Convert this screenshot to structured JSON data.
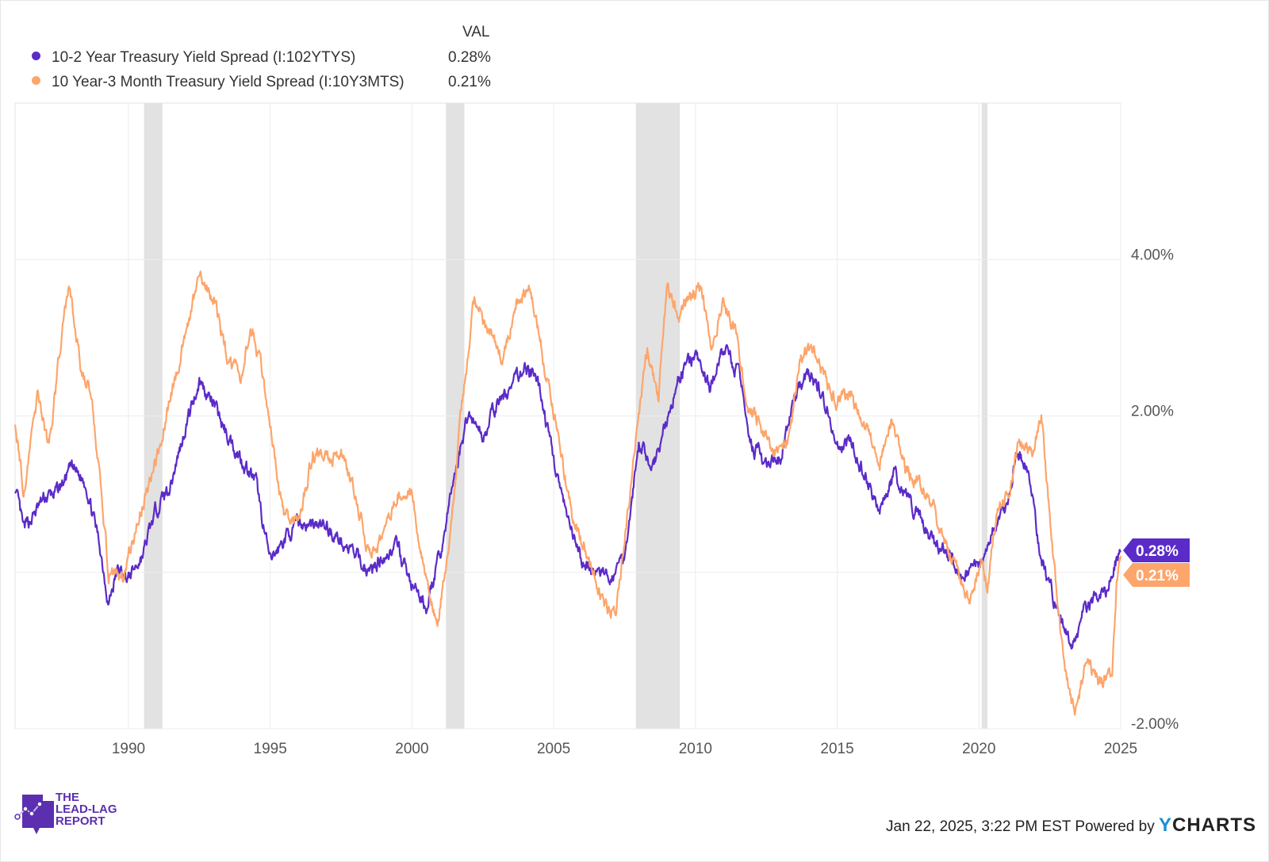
{
  "legend": {
    "header": "VAL",
    "series": [
      {
        "label": "10-2 Year Treasury Yield Spread (I:102YTYS)",
        "value": "0.28%",
        "color": "#5b2bc8"
      },
      {
        "label": "10 Year-3 Month Treasury Yield Spread (I:10Y3MTS)",
        "value": "0.21%",
        "color": "#fda56b"
      }
    ]
  },
  "footer": {
    "timestamp": "Jan 22, 2025, 3:22 PM EST",
    "powered": "Powered by",
    "brand_y": "Y",
    "brand_rest": "CHARTS"
  },
  "logo": {
    "line1": "THE",
    "line2": "LEAD-LAG",
    "line3": "REPORT"
  },
  "chart_data": {
    "type": "line",
    "title": "",
    "xlabel": "",
    "ylabel": "",
    "xlim": [
      1986.0,
      2025.0
    ],
    "ylim": [
      -2.0,
      6.0
    ],
    "x_ticks": [
      1990,
      1995,
      2000,
      2005,
      2010,
      2015,
      2020,
      2025
    ],
    "x_tick_labels": [
      "1990",
      "1995",
      "2000",
      "2005",
      "2010",
      "2015",
      "2020",
      "2025"
    ],
    "y_ticks": [
      -2,
      0,
      2,
      4
    ],
    "y_tick_labels": [
      "-2.00%",
      "",
      "2.00%",
      "4.00%"
    ],
    "grid": true,
    "recessions": [
      [
        1990.55,
        1991.2
      ],
      [
        2001.2,
        2001.85
      ],
      [
        2007.9,
        2009.45
      ],
      [
        2020.1,
        2020.3
      ]
    ],
    "end_labels": [
      "0.28%",
      "0.21%"
    ],
    "series": [
      {
        "name": "10-2 Year Treasury Yield Spread (I:102YTYS)",
        "color": "#5b2bc8",
        "points": [
          [
            1986.0,
            1.08
          ],
          [
            1986.3,
            0.53
          ],
          [
            1987.0,
            0.93
          ],
          [
            1987.5,
            1.03
          ],
          [
            1988.0,
            1.34
          ],
          [
            1988.5,
            1.14
          ],
          [
            1989.0,
            0.32
          ],
          [
            1989.3,
            -0.39
          ],
          [
            1989.6,
            0.02
          ],
          [
            1990.0,
            -0.08
          ],
          [
            1990.5,
            0.22
          ],
          [
            1991.0,
            0.83
          ],
          [
            1991.5,
            1.14
          ],
          [
            1992.0,
            1.85
          ],
          [
            1992.5,
            2.45
          ],
          [
            1993.0,
            2.15
          ],
          [
            1993.5,
            1.74
          ],
          [
            1994.0,
            1.44
          ],
          [
            1994.5,
            1.14
          ],
          [
            1995.0,
            0.12
          ],
          [
            1995.5,
            0.43
          ],
          [
            1996.0,
            0.63
          ],
          [
            1997.0,
            0.58
          ],
          [
            1998.0,
            0.22
          ],
          [
            1998.5,
            0.0
          ],
          [
            1999.0,
            0.22
          ],
          [
            1999.5,
            0.32
          ],
          [
            2000.0,
            -0.18
          ],
          [
            2000.5,
            -0.44
          ],
          [
            2001.0,
            0.22
          ],
          [
            2001.5,
            1.24
          ],
          [
            2002.0,
            2.05
          ],
          [
            2002.5,
            1.74
          ],
          [
            2003.0,
            2.15
          ],
          [
            2003.5,
            2.35
          ],
          [
            2004.0,
            2.66
          ],
          [
            2004.5,
            2.35
          ],
          [
            2005.0,
            1.44
          ],
          [
            2005.5,
            0.63
          ],
          [
            2006.0,
            0.12
          ],
          [
            2006.5,
            0.0
          ],
          [
            2007.0,
            -0.08
          ],
          [
            2007.5,
            0.22
          ],
          [
            2008.0,
            1.64
          ],
          [
            2008.5,
            1.34
          ],
          [
            2009.0,
            1.95
          ],
          [
            2009.5,
            2.56
          ],
          [
            2010.0,
            2.76
          ],
          [
            2010.5,
            2.35
          ],
          [
            2011.0,
            2.86
          ],
          [
            2011.5,
            2.56
          ],
          [
            2012.0,
            1.64
          ],
          [
            2012.5,
            1.34
          ],
          [
            2013.0,
            1.44
          ],
          [
            2013.5,
            2.25
          ],
          [
            2014.0,
            2.56
          ],
          [
            2014.5,
            2.25
          ],
          [
            2015.0,
            1.64
          ],
          [
            2015.5,
            1.64
          ],
          [
            2016.0,
            1.24
          ],
          [
            2016.5,
            0.83
          ],
          [
            2017.0,
            1.24
          ],
          [
            2017.5,
            0.93
          ],
          [
            2018.0,
            0.63
          ],
          [
            2018.5,
            0.32
          ],
          [
            2019.0,
            0.22
          ],
          [
            2019.5,
            -0.08
          ],
          [
            2020.0,
            0.12
          ],
          [
            2020.5,
            0.53
          ],
          [
            2021.0,
            0.83
          ],
          [
            2021.3,
            1.54
          ],
          [
            2021.8,
            1.24
          ],
          [
            2022.2,
            0.12
          ],
          [
            2022.5,
            -0.18
          ],
          [
            2023.0,
            -0.69
          ],
          [
            2023.3,
            -1.0
          ],
          [
            2023.7,
            -0.49
          ],
          [
            2024.0,
            -0.39
          ],
          [
            2024.5,
            -0.28
          ],
          [
            2024.8,
            0.12
          ],
          [
            2025.0,
            0.28
          ]
        ]
      },
      {
        "name": "10 Year-3 Month Treasury Yield Spread (I:10Y3MTS)",
        "color": "#fda56b",
        "points": [
          [
            1986.0,
            1.95
          ],
          [
            1986.3,
            1.03
          ],
          [
            1986.8,
            2.25
          ],
          [
            1987.2,
            1.64
          ],
          [
            1987.6,
            2.86
          ],
          [
            1987.9,
            3.67
          ],
          [
            1988.3,
            2.66
          ],
          [
            1988.7,
            2.25
          ],
          [
            1989.0,
            1.14
          ],
          [
            1989.3,
            0.0
          ],
          [
            1989.8,
            -0.08
          ],
          [
            1990.2,
            0.43
          ],
          [
            1990.6,
            1.03
          ],
          [
            1991.0,
            1.44
          ],
          [
            1991.5,
            2.25
          ],
          [
            1992.0,
            3.06
          ],
          [
            1992.5,
            3.77
          ],
          [
            1993.0,
            3.47
          ],
          [
            1993.5,
            2.76
          ],
          [
            1994.0,
            2.45
          ],
          [
            1994.3,
            3.16
          ],
          [
            1994.7,
            2.56
          ],
          [
            1995.0,
            1.85
          ],
          [
            1995.5,
            0.73
          ],
          [
            1996.0,
            0.63
          ],
          [
            1996.5,
            1.54
          ],
          [
            1997.0,
            1.44
          ],
          [
            1997.5,
            1.54
          ],
          [
            1998.0,
            1.03
          ],
          [
            1998.5,
            0.22
          ],
          [
            1999.0,
            0.43
          ],
          [
            1999.5,
            1.03
          ],
          [
            2000.0,
            1.03
          ],
          [
            2000.5,
            -0.08
          ],
          [
            2000.9,
            -0.69
          ],
          [
            2001.3,
            0.43
          ],
          [
            2001.8,
            2.25
          ],
          [
            2002.2,
            3.47
          ],
          [
            2002.7,
            3.06
          ],
          [
            2003.2,
            2.76
          ],
          [
            2003.7,
            3.47
          ],
          [
            2004.2,
            3.67
          ],
          [
            2004.7,
            2.56
          ],
          [
            2005.2,
            1.64
          ],
          [
            2005.7,
            0.63
          ],
          [
            2006.2,
            0.22
          ],
          [
            2006.7,
            -0.39
          ],
          [
            2007.2,
            -0.49
          ],
          [
            2007.6,
            0.73
          ],
          [
            2008.0,
            2.05
          ],
          [
            2008.3,
            2.86
          ],
          [
            2008.7,
            2.25
          ],
          [
            2009.0,
            3.67
          ],
          [
            2009.4,
            3.26
          ],
          [
            2009.8,
            3.57
          ],
          [
            2010.2,
            3.67
          ],
          [
            2010.6,
            2.86
          ],
          [
            2011.0,
            3.47
          ],
          [
            2011.4,
            3.06
          ],
          [
            2011.9,
            2.05
          ],
          [
            2012.3,
            1.85
          ],
          [
            2012.8,
            1.54
          ],
          [
            2013.3,
            1.64
          ],
          [
            2013.7,
            2.76
          ],
          [
            2014.1,
            2.86
          ],
          [
            2014.6,
            2.45
          ],
          [
            2015.0,
            2.15
          ],
          [
            2015.5,
            2.25
          ],
          [
            2016.0,
            1.85
          ],
          [
            2016.5,
            1.44
          ],
          [
            2016.9,
            1.95
          ],
          [
            2017.4,
            1.34
          ],
          [
            2017.9,
            1.14
          ],
          [
            2018.4,
            0.83
          ],
          [
            2018.9,
            0.32
          ],
          [
            2019.4,
            -0.18
          ],
          [
            2019.7,
            -0.39
          ],
          [
            2020.1,
            0.12
          ],
          [
            2020.3,
            -0.18
          ],
          [
            2020.6,
            0.73
          ],
          [
            2021.1,
            1.03
          ],
          [
            2021.4,
            1.64
          ],
          [
            2021.9,
            1.54
          ],
          [
            2022.2,
            2.05
          ],
          [
            2022.5,
            0.73
          ],
          [
            2022.8,
            -0.59
          ],
          [
            2023.2,
            -1.6
          ],
          [
            2023.4,
            -1.8
          ],
          [
            2023.8,
            -1.1
          ],
          [
            2024.2,
            -1.4
          ],
          [
            2024.7,
            -1.3
          ],
          [
            2024.85,
            -0.18
          ],
          [
            2025.0,
            0.21
          ]
        ]
      }
    ]
  }
}
